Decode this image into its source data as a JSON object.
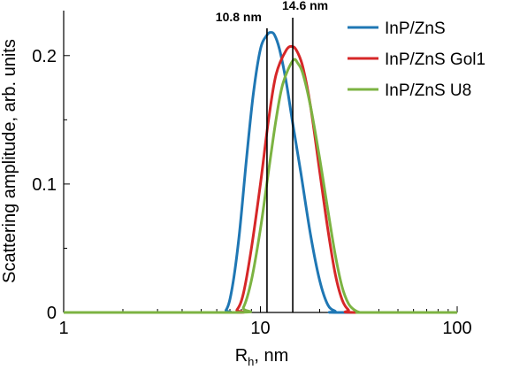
{
  "chart_data": {
    "type": "line",
    "xscale": "log",
    "xlim": [
      1,
      100
    ],
    "ylim": [
      0,
      0.235
    ],
    "xlabel": "R",
    "xlabel_sub": "h",
    "xlabel_unit": ", nm",
    "ylabel": "Scattering amplitude, arb. units",
    "xticks": [
      {
        "value": 1,
        "label": "1"
      },
      {
        "value": 10,
        "label": "10"
      },
      {
        "value": 100,
        "label": "100"
      }
    ],
    "yticks": [
      {
        "value": 0,
        "label": "0"
      },
      {
        "value": 0.1,
        "label": "0.1"
      },
      {
        "value": 0.2,
        "label": "0.2"
      }
    ],
    "legend_position": "top-right",
    "series": [
      {
        "name": "InP/ZnS",
        "color": "#1f77b4",
        "x": [
          1,
          6,
          6.7,
          7.2,
          7.8,
          8.5,
          9.2,
          10,
          10.8,
          11.3,
          11.8,
          12.5,
          13.5,
          14.5,
          16,
          18,
          20,
          22,
          24,
          25,
          100
        ],
        "y": [
          0,
          0,
          0.002,
          0.02,
          0.06,
          0.12,
          0.17,
          0.205,
          0.216,
          0.218,
          0.216,
          0.205,
          0.18,
          0.15,
          0.11,
          0.06,
          0.025,
          0.006,
          0.001,
          0,
          0
        ]
      },
      {
        "name": "InP/ZnS Gol1",
        "color": "#d62728",
        "x": [
          1,
          7,
          7.6,
          8.2,
          9,
          10,
          11,
          12,
          13.5,
          14.6,
          15.5,
          16.5,
          18,
          20,
          22,
          24,
          26,
          28,
          30,
          100
        ],
        "y": [
          0,
          0,
          0.002,
          0.015,
          0.05,
          0.1,
          0.15,
          0.185,
          0.204,
          0.207,
          0.202,
          0.19,
          0.16,
          0.11,
          0.065,
          0.03,
          0.01,
          0.002,
          0,
          0
        ]
      },
      {
        "name": "InP/ZnS U8",
        "color": "#7cb342",
        "x": [
          1,
          7.5,
          8.2,
          9,
          10,
          11,
          12,
          13,
          14.6,
          15.5,
          16.5,
          18,
          20,
          22,
          24,
          26,
          28,
          30,
          32,
          34,
          100
        ],
        "y": [
          0,
          0,
          0.004,
          0.025,
          0.065,
          0.11,
          0.15,
          0.178,
          0.196,
          0.194,
          0.185,
          0.16,
          0.12,
          0.08,
          0.045,
          0.02,
          0.007,
          0.002,
          0,
          0,
          0
        ]
      }
    ],
    "annotations": [
      {
        "label": "10.8 nm",
        "x": 10.8
      },
      {
        "label": "14.6 nm",
        "x": 14.6
      }
    ]
  }
}
